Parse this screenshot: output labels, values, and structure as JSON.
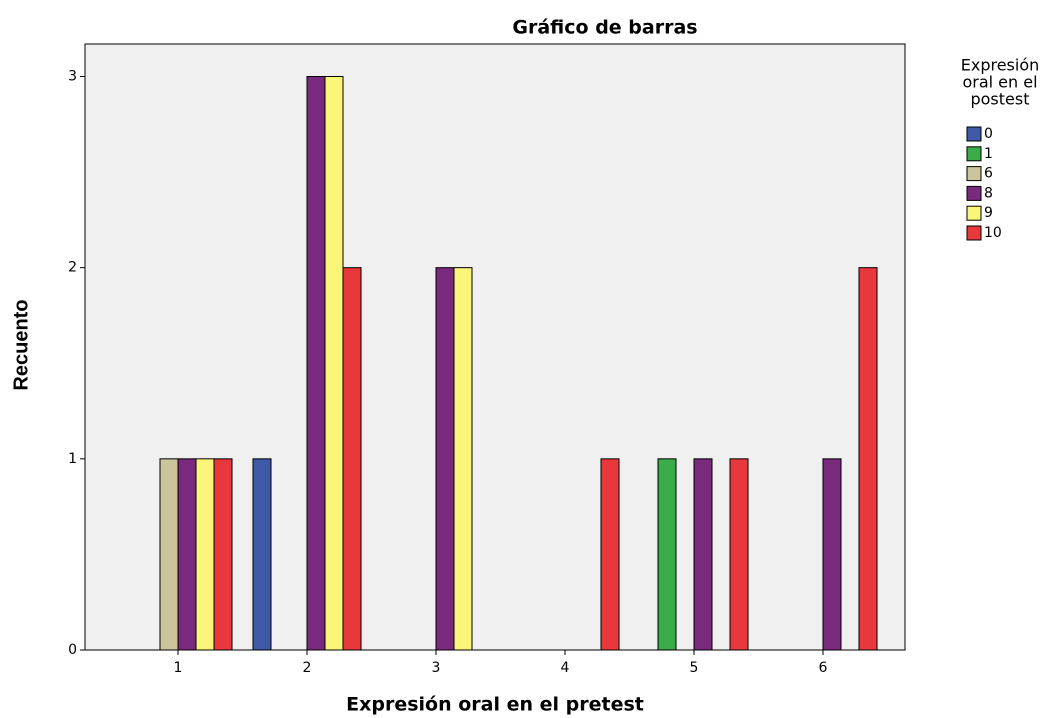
{
  "chart_data": {
    "type": "bar",
    "title": "Gráfico de barras",
    "x_label": "Expresión oral en el pretest",
    "y_label": "Recuento",
    "legend_title": [
      "Expresión",
      "oral en el",
      "postest"
    ],
    "categories": [
      "1",
      "2",
      "3",
      "4",
      "5",
      "6"
    ],
    "series": [
      {
        "name": "0",
        "color": "#3e59a8",
        "values": [
          0,
          1,
          0,
          0,
          0,
          0
        ]
      },
      {
        "name": "1",
        "color": "#3aac48",
        "values": [
          0,
          0,
          0,
          0,
          1,
          0
        ]
      },
      {
        "name": "6",
        "color": "#cbc49c",
        "values": [
          1,
          0,
          0,
          0,
          0,
          0
        ]
      },
      {
        "name": "8",
        "color": "#7a2a7c",
        "values": [
          1,
          3,
          2,
          0,
          1,
          1
        ]
      },
      {
        "name": "9",
        "color": "#fbf67a",
        "values": [
          1,
          3,
          2,
          0,
          0,
          0
        ]
      },
      {
        "name": "10",
        "color": "#e9383c",
        "values": [
          1,
          2,
          0,
          1,
          1,
          2
        ]
      }
    ],
    "ylim": [
      0,
      3.17
    ],
    "yticks": [
      0,
      1,
      2,
      3
    ],
    "legend": "right",
    "grid": false
  }
}
